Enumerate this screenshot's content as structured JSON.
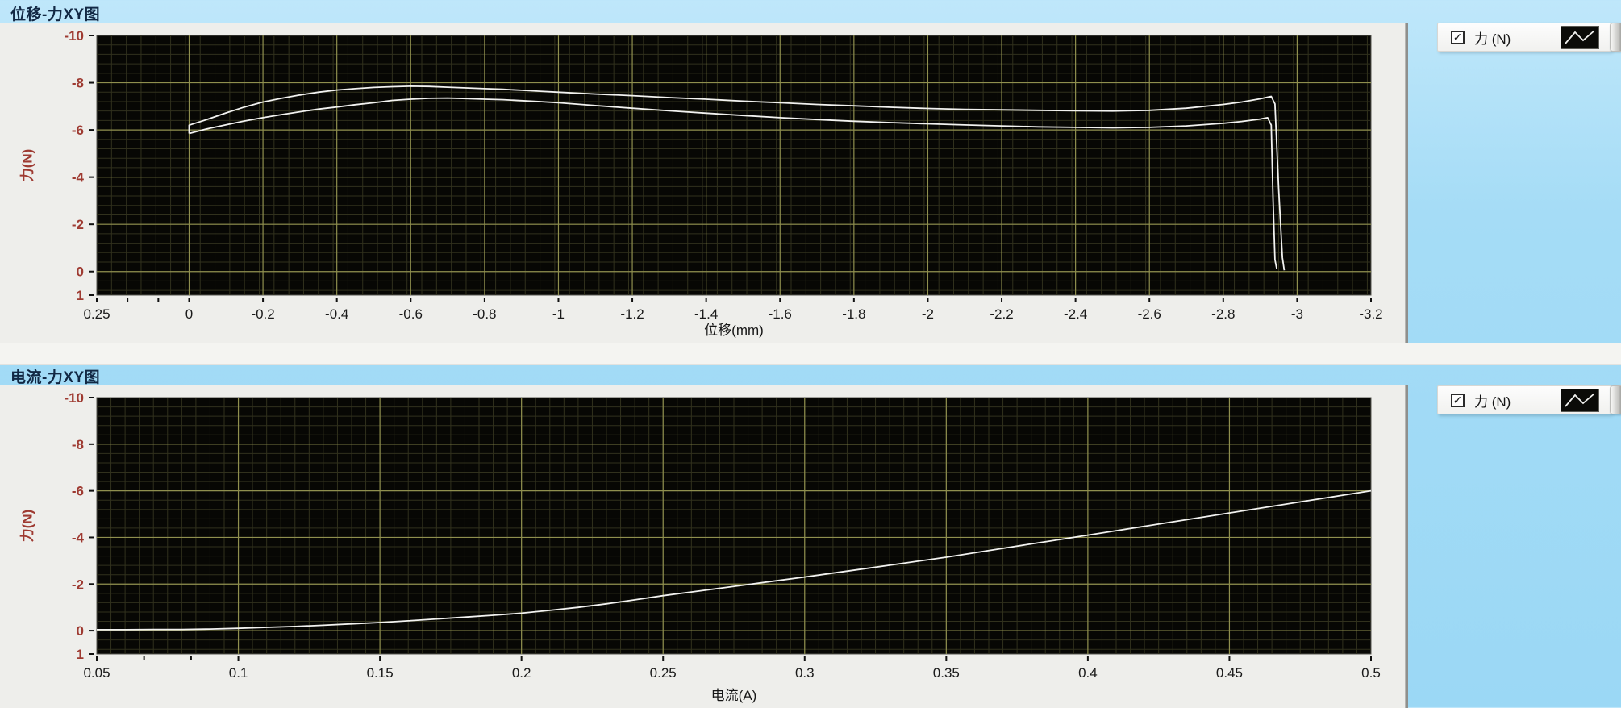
{
  "window": {
    "background_color": "#a5dcf6"
  },
  "icons": {
    "check": "✓",
    "waveform": "zigzag-line"
  },
  "colors": {
    "plot_bg": "#070704",
    "grid_major": "#8f8f4e",
    "grid_minor": "#31311d",
    "curve": "#f2f2f0",
    "x_tick_text": "#1a1a1a",
    "y_tick_text": "#9e3a31",
    "tick_mark": "#111111",
    "plot_border": "#55554f"
  },
  "legends": [
    {
      "label": "力 (N)",
      "checked": true
    },
    {
      "label": "力 (N)",
      "checked": true
    }
  ],
  "chart_data": [
    {
      "type": "line",
      "title": "位移-力XY图",
      "xlabel": "位移(mm)",
      "ylabel": "力(N)",
      "xlim": [
        0.25,
        -3.2
      ],
      "ylim_top_to_bottom": [
        -10,
        1
      ],
      "grid": true,
      "legend_position": "top-right-outside",
      "x_tick_values": [
        0.25,
        0,
        -0.2,
        -0.4,
        -0.6,
        -0.8,
        -1,
        -1.2,
        -1.4,
        -1.6,
        -1.8,
        -2,
        -2.2,
        -2.4,
        -2.6,
        -2.8,
        -3,
        -3.2
      ],
      "x_tick_labels": [
        "0.25",
        "0",
        "-0.2",
        "-0.4",
        "-0.6",
        "-0.8",
        "-1",
        "-1.2",
        "-1.4",
        "-1.6",
        "-1.8",
        "-2",
        "-2.2",
        "-2.4",
        "-2.6",
        "-2.8",
        "-3",
        "-3.2"
      ],
      "y_tick_values": [
        -10,
        -8,
        -6,
        -4,
        -2,
        0,
        1
      ],
      "y_tick_labels": [
        "-10",
        "-8",
        "-6",
        "-4",
        "-2",
        "0",
        "1"
      ],
      "x_minor_step": 0.04,
      "y_minor_step": 0.4,
      "x_minor_axis_ticks": [
        0.1667,
        0.0833
      ],
      "series": [
        {
          "name": "力 (N)",
          "points": [
            [
              0,
              -5.85
            ],
            [
              0,
              -6.2
            ],
            [
              -0.05,
              -6.45
            ],
            [
              -0.1,
              -6.72
            ],
            [
              -0.15,
              -6.97
            ],
            [
              -0.2,
              -7.18
            ],
            [
              -0.25,
              -7.34
            ],
            [
              -0.3,
              -7.48
            ],
            [
              -0.35,
              -7.6
            ],
            [
              -0.4,
              -7.69
            ],
            [
              -0.45,
              -7.75
            ],
            [
              -0.5,
              -7.8
            ],
            [
              -0.55,
              -7.83
            ],
            [
              -0.6,
              -7.85
            ],
            [
              -0.65,
              -7.84
            ],
            [
              -0.7,
              -7.81
            ],
            [
              -0.75,
              -7.78
            ],
            [
              -0.8,
              -7.75
            ],
            [
              -0.85,
              -7.72
            ],
            [
              -0.9,
              -7.68
            ],
            [
              -0.95,
              -7.64
            ],
            [
              -1.0,
              -7.6
            ],
            [
              -1.1,
              -7.52
            ],
            [
              -1.2,
              -7.45
            ],
            [
              -1.3,
              -7.37
            ],
            [
              -1.4,
              -7.3
            ],
            [
              -1.5,
              -7.22
            ],
            [
              -1.6,
              -7.15
            ],
            [
              -1.7,
              -7.08
            ],
            [
              -1.8,
              -7.02
            ],
            [
              -1.9,
              -6.96
            ],
            [
              -2.0,
              -6.91
            ],
            [
              -2.1,
              -6.87
            ],
            [
              -2.2,
              -6.85
            ],
            [
              -2.3,
              -6.83
            ],
            [
              -2.4,
              -6.81
            ],
            [
              -2.5,
              -6.8
            ],
            [
              -2.6,
              -6.83
            ],
            [
              -2.7,
              -6.92
            ],
            [
              -2.8,
              -7.08
            ],
            [
              -2.85,
              -7.18
            ],
            [
              -2.9,
              -7.32
            ],
            [
              -2.93,
              -7.42
            ],
            [
              -2.94,
              -7.1
            ],
            [
              -2.95,
              -3.5
            ],
            [
              -2.96,
              -0.6
            ],
            [
              -2.965,
              -0.05
            ]
          ]
        },
        {
          "name": "力 (N)",
          "points": [
            [
              0,
              -5.85
            ],
            [
              -0.05,
              -6.05
            ],
            [
              -0.1,
              -6.22
            ],
            [
              -0.15,
              -6.38
            ],
            [
              -0.2,
              -6.52
            ],
            [
              -0.25,
              -6.65
            ],
            [
              -0.3,
              -6.77
            ],
            [
              -0.35,
              -6.88
            ],
            [
              -0.4,
              -6.97
            ],
            [
              -0.45,
              -7.07
            ],
            [
              -0.5,
              -7.15
            ],
            [
              -0.55,
              -7.25
            ],
            [
              -0.6,
              -7.3
            ],
            [
              -0.65,
              -7.34
            ],
            [
              -0.7,
              -7.35
            ],
            [
              -0.75,
              -7.33
            ],
            [
              -0.8,
              -7.3
            ],
            [
              -0.85,
              -7.28
            ],
            [
              -0.9,
              -7.24
            ],
            [
              -0.95,
              -7.2
            ],
            [
              -1.0,
              -7.15
            ],
            [
              -1.1,
              -7.03
            ],
            [
              -1.2,
              -6.92
            ],
            [
              -1.3,
              -6.81
            ],
            [
              -1.4,
              -6.71
            ],
            [
              -1.5,
              -6.61
            ],
            [
              -1.6,
              -6.52
            ],
            [
              -1.7,
              -6.44
            ],
            [
              -1.8,
              -6.37
            ],
            [
              -1.9,
              -6.31
            ],
            [
              -2.0,
              -6.26
            ],
            [
              -2.1,
              -6.21
            ],
            [
              -2.2,
              -6.17
            ],
            [
              -2.3,
              -6.13
            ],
            [
              -2.4,
              -6.11
            ],
            [
              -2.5,
              -6.09
            ],
            [
              -2.6,
              -6.11
            ],
            [
              -2.7,
              -6.17
            ],
            [
              -2.8,
              -6.28
            ],
            [
              -2.85,
              -6.36
            ],
            [
              -2.9,
              -6.46
            ],
            [
              -2.92,
              -6.52
            ],
            [
              -2.93,
              -6.2
            ],
            [
              -2.935,
              -3.0
            ],
            [
              -2.94,
              -0.5
            ],
            [
              -2.945,
              -0.1
            ]
          ]
        }
      ]
    },
    {
      "type": "line",
      "title": "电流-力XY图",
      "xlabel": "电流(A)",
      "ylabel": "力(N)",
      "xlim": [
        0.05,
        0.5
      ],
      "ylim_top_to_bottom": [
        -10,
        1
      ],
      "grid": true,
      "legend_position": "top-right-outside",
      "x_tick_values": [
        0.05,
        0.1,
        0.15,
        0.2,
        0.25,
        0.3,
        0.35,
        0.4,
        0.45,
        0.5
      ],
      "x_tick_labels": [
        "0.05",
        "0.1",
        "0.15",
        "0.2",
        "0.25",
        "0.3",
        "0.35",
        "0.4",
        "0.45",
        "0.5"
      ],
      "y_tick_values": [
        -10,
        -8,
        -6,
        -4,
        -2,
        0,
        1
      ],
      "y_tick_labels": [
        "-10",
        "-8",
        "-6",
        "-4",
        "-2",
        "0",
        "1"
      ],
      "x_minor_step": 0.005,
      "y_minor_step": 0.4,
      "x_minor_axis_ticks": [
        0.0667,
        0.0833
      ],
      "series": [
        {
          "name": "力 (N)",
          "points": [
            [
              0.05,
              -0.04
            ],
            [
              0.06,
              -0.04
            ],
            [
              0.07,
              -0.05
            ],
            [
              0.08,
              -0.05
            ],
            [
              0.09,
              -0.07
            ],
            [
              0.1,
              -0.1
            ],
            [
              0.11,
              -0.14
            ],
            [
              0.12,
              -0.18
            ],
            [
              0.13,
              -0.23
            ],
            [
              0.14,
              -0.29
            ],
            [
              0.15,
              -0.35
            ],
            [
              0.16,
              -0.42
            ],
            [
              0.17,
              -0.5
            ],
            [
              0.18,
              -0.58
            ],
            [
              0.19,
              -0.66
            ],
            [
              0.2,
              -0.75
            ],
            [
              0.21,
              -0.87
            ],
            [
              0.22,
              -1.0
            ],
            [
              0.23,
              -1.15
            ],
            [
              0.24,
              -1.32
            ],
            [
              0.25,
              -1.5
            ],
            [
              0.26,
              -1.66
            ],
            [
              0.27,
              -1.82
            ],
            [
              0.28,
              -1.98
            ],
            [
              0.29,
              -2.14
            ],
            [
              0.3,
              -2.3
            ],
            [
              0.31,
              -2.47
            ],
            [
              0.32,
              -2.64
            ],
            [
              0.33,
              -2.81
            ],
            [
              0.34,
              -2.98
            ],
            [
              0.35,
              -3.15
            ],
            [
              0.36,
              -3.34
            ],
            [
              0.37,
              -3.53
            ],
            [
              0.38,
              -3.72
            ],
            [
              0.39,
              -3.91
            ],
            [
              0.4,
              -4.1
            ],
            [
              0.41,
              -4.29
            ],
            [
              0.42,
              -4.48
            ],
            [
              0.43,
              -4.67
            ],
            [
              0.44,
              -4.86
            ],
            [
              0.45,
              -5.05
            ],
            [
              0.46,
              -5.24
            ],
            [
              0.47,
              -5.43
            ],
            [
              0.48,
              -5.62
            ],
            [
              0.49,
              -5.81
            ],
            [
              0.5,
              -6.0
            ]
          ]
        }
      ]
    }
  ]
}
